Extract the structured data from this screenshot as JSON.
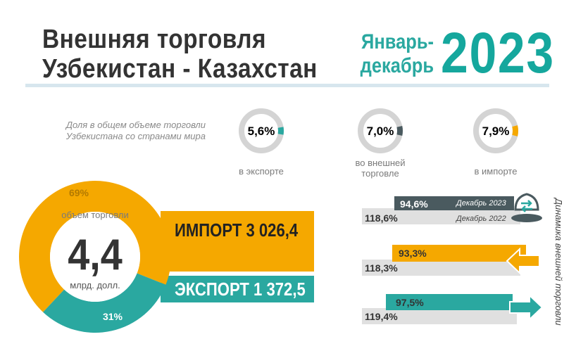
{
  "header": {
    "title_line1": "Внешняя торговля",
    "title_line2": "Узбекистан - Казахстан",
    "period_line1": "Январь-",
    "period_line2": "декабрь",
    "year": "2023"
  },
  "shares": {
    "note": "Доля в общем объеме торговли Узбекистана со странами мира",
    "items": [
      {
        "value": "5,6%",
        "label": "в экспорте",
        "color": "#2aa8a0",
        "fraction": 0.056
      },
      {
        "value": "7,0%",
        "label": "во внешней торговле",
        "color": "#4a5a5f",
        "fraction": 0.07
      },
      {
        "value": "7,9%",
        "label": "в импорте",
        "color": "#f5a800",
        "fraction": 0.079
      }
    ]
  },
  "colors": {
    "import": "#f5a800",
    "export": "#2aa8a0",
    "dark": "#4a5a5f",
    "grey": "#d9d9d9",
    "ring_grey": "#d4d4d4"
  },
  "chart_data": {
    "type": "pie",
    "categories": [
      "Импорт",
      "Экспорт"
    ],
    "values": [
      69,
      31
    ],
    "slice_labels": [
      "69%",
      "31%"
    ],
    "center_caption_top": "объем торговли",
    "center_value": "4,4",
    "center_caption_bottom": "млрд. долл."
  },
  "trade_bars": {
    "import_label": "ИМПОРТ 3 026,4",
    "export_label": "ЭКСПОРТ 1 372,5"
  },
  "dynamics": {
    "title": "Динамика внешней торговли",
    "month_current": "Декабрь 2023",
    "month_previous": "Декабрь 2022",
    "rows": [
      {
        "current": "94,6%",
        "previous": "118,6%",
        "color": "#4a5a5f"
      },
      {
        "current": "93,3%",
        "previous": "118,3%",
        "color": "#f5a800"
      },
      {
        "current": "97,5%",
        "previous": "119,4%",
        "color": "#2aa8a0"
      }
    ]
  }
}
